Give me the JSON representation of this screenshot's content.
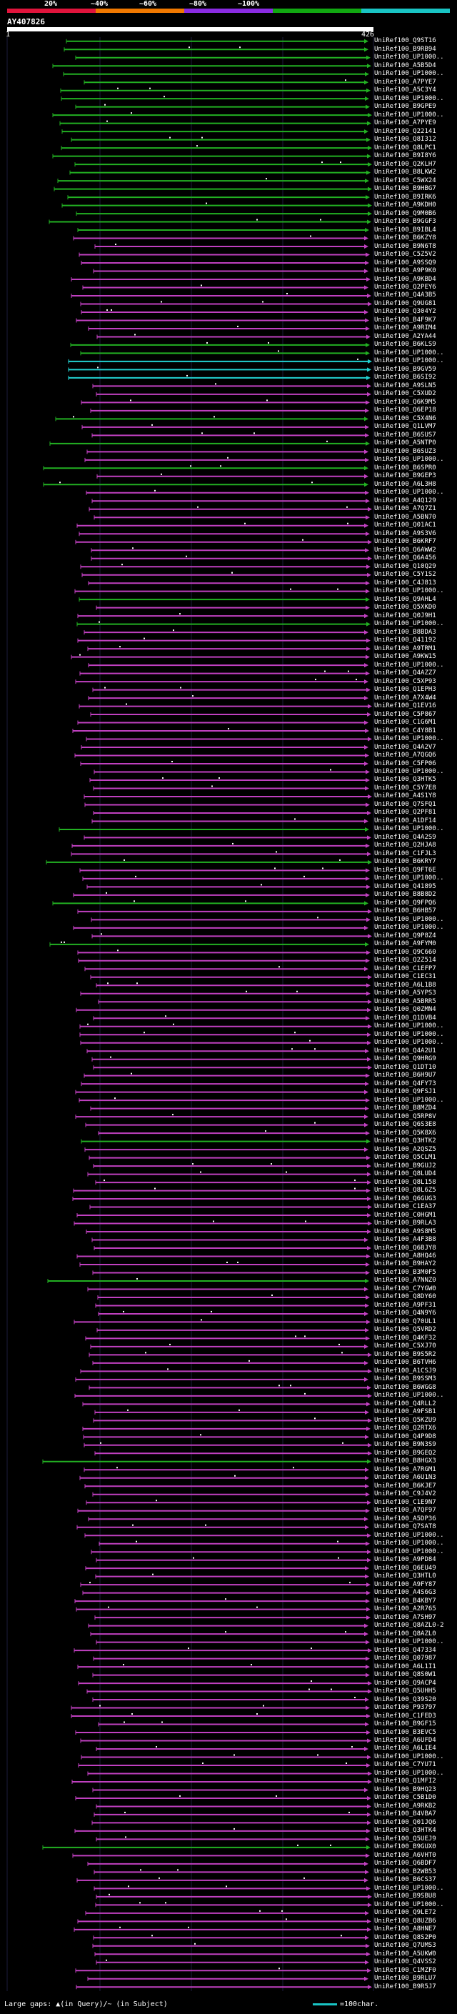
{
  "legend": {
    "segments": [
      {
        "label": "20%",
        "color": "#e0143c"
      },
      {
        "label": "~40%",
        "color": "#f07800"
      },
      {
        "label": "~60%",
        "color": "#8a2be2"
      },
      {
        "label": "~80%",
        "color": "#11a811"
      },
      {
        "label": "~100%",
        "color": "#19c4c4"
      }
    ]
  },
  "query": {
    "id": "AY407826",
    "start": "1",
    "end": "426"
  },
  "colors": {
    "magenta": "#c040c0",
    "green": "#22b022",
    "cyan": "#22d0d0",
    "orange": "#f08020"
  },
  "hits": [
    "UniRef100_Q9ST16",
    "UniRef100_B9RB94",
    "UniRef100_UP1000..",
    "UniRef100_A5B5D4",
    "UniRef100_UP1000..",
    "UniRef100_A7PYE7",
    "UniRef100_A5C3Y4",
    "UniRef100_UP1000..",
    "UniRef100_B9GPE9",
    "UniRef100_UP1000..",
    "UniRef100_A7PYE9",
    "UniRef100_Q22141",
    "UniRef100_Q8I312",
    "UniRef100_Q8LPC1",
    "UniRef100_B9I8Y6",
    "UniRef100_Q2KLH7",
    "UniRef100_B8LKW2",
    "UniRef100_C5WX24",
    "UniRef100_B9HBG7",
    "UniRef100_B9IRK6",
    "UniRef100_A9KDH0",
    "UniRef100_Q9M0B6",
    "UniRef100_B9GGF3",
    "UniRef100_B9IBL4",
    "UniRef100_B6KZY8",
    "UniRef100_B9N6T8",
    "UniRef100_C5Z5V2",
    "UniRef100_A9SSQ9",
    "UniRef100_A9P9K0",
    "UniRef100_A9KBD4",
    "UniRef100_Q2PEY6",
    "UniRef100_Q4A3B5",
    "UniRef100_Q9UG81",
    "UniRef100_Q304Y2",
    "UniRef100_B4F9K7",
    "UniRef100_A9RIM4",
    "UniRef100_A2YA44",
    "UniRef100_B6KLS9",
    "UniRef100_UP1000..",
    "UniRef100_UP1000..",
    "UniRef100_B9GV59",
    "UniRef100_B6SI92",
    "UniRef100_A9SLN5",
    "UniRef100_C5XUD2",
    "UniRef100_Q6K9M5",
    "UniRef100_Q6EP18",
    "UniRef100_C5X4N6",
    "UniRef100_Q1LVM7",
    "UniRef100_B6SUS7",
    "UniRef100_A5NTP0",
    "UniRef100_B6SUZ3",
    "UniRef100_UP1000..",
    "UniRef100_B6SPR0",
    "UniRef100_B9GEP3",
    "UniRef100_A6L3H8",
    "UniRef100_UP1000..",
    "UniRef100_A4Q129",
    "UniRef100_A7Q7Z1",
    "UniRef100_A5BN70",
    "UniRef100_Q01AC1",
    "UniRef100_A9S3V6",
    "UniRef100_B6KRF7",
    "UniRef100_Q6AWW2",
    "UniRef100_Q6A456",
    "UniRef100_Q10Q29",
    "UniRef100_C5Y1S2",
    "UniRef100_C4J813",
    "UniRef100_UP1000..",
    "UniRef100_Q9AHL4",
    "UniRef100_Q5XKD0",
    "UniRef100_Q0J9H1",
    "UniRef100_UP1000..",
    "UniRef100_B8BDA3",
    "UniRef100_Q41192",
    "UniRef100_A9TRM1",
    "UniRef100_A9KW15",
    "UniRef100_UP1000..",
    "UniRef100_Q4AZZ7",
    "UniRef100_C5XP93",
    "UniRef100_Q1EPH3",
    "UniRef100_A7X4W4",
    "UniRef100_Q1EV16",
    "UniRef100_C5P867",
    "UniRef100_C1G6M1",
    "UniRef100_C4Y8B1",
    "UniRef100_UP1000..",
    "UniRef100_Q4A2V7",
    "UniRef100_A7QGQ6",
    "UniRef100_C5FP06",
    "UniRef100_UP1000..",
    "UniRef100_Q3HTK5",
    "UniRef100_C5Y7E8",
    "UniRef100_A4S1Y8",
    "UniRef100_Q7SFQ1",
    "UniRef100_Q2PF81",
    "UniRef100_A1DF14",
    "UniRef100_UP1000..",
    "UniRef100_Q4A2S9",
    "UniRef100_Q2HJA8",
    "UniRef100_C1FJL3",
    "UniRef100_B6KRY7",
    "UniRef100_Q9FT6E",
    "UniRef100_UP1000..",
    "UniRef100_Q41895",
    "UniRef100_B8B8D2",
    "UniRef100_Q9FPQ6",
    "UniRef100_B6HB57",
    "UniRef100_UP1000..",
    "UniRef100_UP1000..",
    "UniRef100_Q9P8Z4",
    "UniRef100_A9FYM0",
    "UniRef100_Q9C660",
    "UniRef100_Q2Z514",
    "UniRef100_C1EFP7",
    "UniRef100_C1EC31",
    "UniRef100_A6L1B8",
    "UniRef100_A5YPS3",
    "UniRef100_A5BRR5",
    "UniRef100_Q0ZMN4",
    "UniRef100_Q1DVB4",
    "UniRef100_UP1000..",
    "UniRef100_UP1000..",
    "UniRef100_UP1000..",
    "UniRef100_Q4A2U1",
    "UniRef100_Q9HRG9",
    "UniRef100_Q1DT10",
    "UniRef100_B6H9U7",
    "UniRef100_Q4FY73",
    "UniRef100_Q9FSJ1",
    "UniRef100_UP1000..",
    "UniRef100_B8MZD4",
    "UniRef100_Q5RP8V",
    "UniRef100_Q6S3E8",
    "UniRef100_Q5K8X6",
    "UniRef100_Q3HTK2",
    "UniRef100_A2QSZ5",
    "UniRef100_Q5CLM1",
    "UniRef100_B9GUJ2",
    "UniRef100_Q8LUD4",
    "UniRef100_Q8L158",
    "UniRef100_Q8L6Z5",
    "UniRef100_Q6GUG3",
    "UniRef100_C1EA37",
    "UniRef100_C0HGM1",
    "UniRef100_B9RLA3",
    "UniRef100_A9S8M5",
    "UniRef100_A4F3B8",
    "UniRef100_Q6BJY8",
    "UniRef100_A8HQ46",
    "UniRef100_B9HAY2",
    "UniRef100_B3M0F5",
    "UniRef100_A7NNZ0",
    "UniRef100_C7YGW0",
    "UniRef100_Q8DY60",
    "UniRef100_A9PF31",
    "UniRef100_Q4N9Y6",
    "UniRef100_Q70UL1",
    "UniRef100_Q5VRD2",
    "UniRef100_Q4KF32",
    "UniRef100_C5XJ70",
    "UniRef100_B9S5R2",
    "UniRef100_B6TVH6",
    "UniRef100_A1CSJ9",
    "UniRef100_B9SSM3",
    "UniRef100_B6WGG8",
    "UniRef100_UP1000..",
    "UniRef100_Q4RLL2",
    "UniRef100_A9FSB1",
    "UniRef100_Q5KZU9",
    "UniRef100_Q2RTX6",
    "UniRef100_Q4P9D8",
    "UniRef100_B9N3S9",
    "UniRef100_B9GEQ2",
    "UniRef100_B8HGX3",
    "UniRef100_A7RGM1",
    "UniRef100_A6U1N3",
    "UniRef100_B6KJE7",
    "UniRef100_C9J4V2",
    "UniRef100_C1E9N7",
    "UniRef100_A7QF97",
    "UniRef100_A5DP36",
    "UniRef100_Q7SAT8",
    "UniRef100_UP1000..",
    "UniRef100_UP1000..",
    "UniRef100_UP1000..",
    "UniRef100_A9PD84",
    "UniRef100_Q6EU49",
    "UniRef100_Q3HTL0",
    "UniRef100_A9FY87",
    "UniRef100_A4S6G3",
    "UniRef100_B4KBY7",
    "UniRef100_A2R765",
    "UniRef100_A7SH97",
    "UniRef100_Q8AZL0-2",
    "UniRef100_Q8AZL0",
    "UniRef100_UP1000..",
    "UniRef100_Q47334",
    "UniRef100_Q07987",
    "UniRef100_A6L1I1",
    "UniRef100_Q8S0W1",
    "UniRef100_Q9ACP4",
    "UniRef100_Q5UHH5",
    "UniRef100_Q39S20",
    "UniRef100_P93797",
    "UniRef100_C1FED3",
    "UniRef100_B9GF15",
    "UniRef100_B3EVC5",
    "UniRef100_A6UFD4",
    "UniRef100_A6LIE4",
    "UniRef100_UP1000..",
    "UniRef100_C7YU71",
    "UniRef100_UP1000..",
    "UniRef100_Q1MFI2",
    "UniRef100_B9HQ23",
    "UniRef100_C5B1D0",
    "UniRef100_A9RKB2",
    "UniRef100_B4VBA7",
    "UniRef100_Q01JQ6",
    "UniRef100_Q3HTK4",
    "UniRef100_Q5UEJ9",
    "UniRef100_B9GUX0",
    "UniRef100_A6VHT0",
    "UniRef100_Q6BDF7",
    "UniRef100_B2WB53",
    "UniRef100_B6CS37",
    "UniRef100_UP1000..",
    "UniRef100_B9SBU8",
    "UniRef100_UP1000..",
    "UniRef100_Q9LE72",
    "UniRef100_Q8UZB6",
    "UniRef100_A8HNE7",
    "UniRef100_Q8S2P0",
    "UniRef100_Q7UMS3",
    "UniRef100_A5UKW0",
    "UniRef100_Q4VSS2",
    "UniRef100_C1MZF0",
    "UniRef100_B9RLU7",
    "UniRef100_B9R5J7"
  ],
  "footer": {
    "text": "Large gaps: ▲(in Query)/~ (in Subject)",
    "scale_label": "=100char."
  }
}
